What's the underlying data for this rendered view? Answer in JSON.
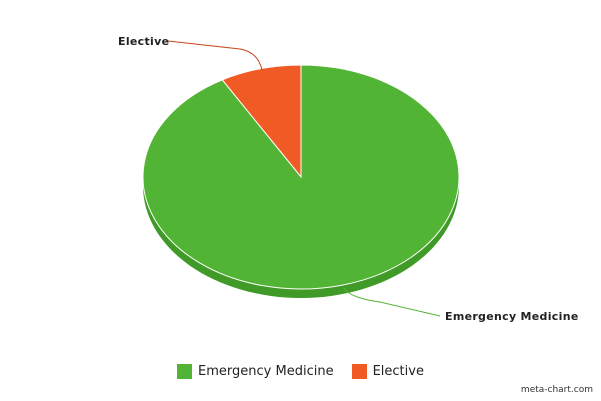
{
  "chart_data": {
    "type": "pie",
    "categories": [
      "Emergency Medicine",
      "Elective"
    ],
    "values": [
      91.7,
      8.3
    ],
    "colors": [
      "#52b434",
      "#f05a24"
    ],
    "side_colors": [
      "#3f9a27",
      "#c9461a"
    ],
    "legend_position": "bottom",
    "title": ""
  },
  "watermark": "meta-chart.com"
}
